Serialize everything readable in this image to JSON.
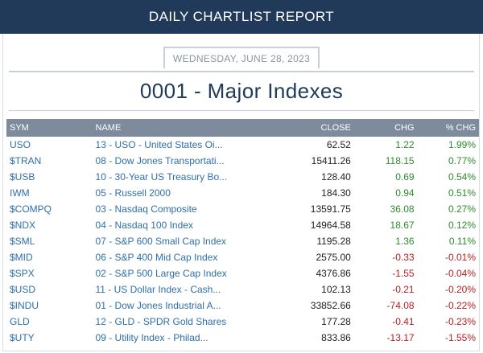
{
  "header": {
    "title": "DAILY CHARTLIST REPORT"
  },
  "date": "WEDNESDAY, JUNE 28, 2023",
  "report_title": "0001 - Major Indexes",
  "columns": {
    "sym": "SYM",
    "name": "NAME",
    "close": "CLOSE",
    "chg": "CHG",
    "pct": "% CHG"
  },
  "colors": {
    "header_bg": "#213a59",
    "table_head_bg": "#7d8b9d",
    "link": "#2f6fa7",
    "positive": "#2f8a2f",
    "negative": "#b22222"
  },
  "rows": [
    {
      "sym": "USO",
      "name": "13 - USO - United States Oi...",
      "close": "62.52",
      "chg": "1.22",
      "pct": "1.99%",
      "dir": "pos"
    },
    {
      "sym": "$TRAN",
      "name": "08 - Dow Jones Transportati...",
      "close": "15411.26",
      "chg": "118.15",
      "pct": "0.77%",
      "dir": "pos"
    },
    {
      "sym": "$USB",
      "name": "10 - 30-Year US Treasury Bo...",
      "close": "128.40",
      "chg": "0.69",
      "pct": "0.54%",
      "dir": "pos"
    },
    {
      "sym": "IWM",
      "name": "05 - Russell 2000",
      "close": "184.30",
      "chg": "0.94",
      "pct": "0.51%",
      "dir": "pos"
    },
    {
      "sym": "$COMPQ",
      "name": "03 - Nasdaq Composite",
      "close": "13591.75",
      "chg": "36.08",
      "pct": "0.27%",
      "dir": "pos"
    },
    {
      "sym": "$NDX",
      "name": "04 - Nasdaq 100 Index",
      "close": "14964.58",
      "chg": "18.67",
      "pct": "0.12%",
      "dir": "pos"
    },
    {
      "sym": "$SML",
      "name": "07 - S&P 600 Small Cap Index",
      "close": "1195.28",
      "chg": "1.36",
      "pct": "0.11%",
      "dir": "pos"
    },
    {
      "sym": "$MID",
      "name": "06 - S&P 400 Mid Cap Index",
      "close": "2575.00",
      "chg": "-0.33",
      "pct": "-0.01%",
      "dir": "neg"
    },
    {
      "sym": "$SPX",
      "name": "02 - S&P 500 Large Cap Index",
      "close": "4376.86",
      "chg": "-1.55",
      "pct": "-0.04%",
      "dir": "neg"
    },
    {
      "sym": "$USD",
      "name": "11 - US Dollar Index - Cash...",
      "close": "102.13",
      "chg": "-0.21",
      "pct": "-0.20%",
      "dir": "neg"
    },
    {
      "sym": "$INDU",
      "name": "01 - Dow Jones Industrial A...",
      "close": "33852.66",
      "chg": "-74.08",
      "pct": "-0.22%",
      "dir": "neg"
    },
    {
      "sym": "GLD",
      "name": "12 - GLD - SPDR Gold Shares",
      "close": "177.28",
      "chg": "-0.41",
      "pct": "-0.23%",
      "dir": "neg"
    },
    {
      "sym": "$UTY",
      "name": "09 - Utility Index - Philad...",
      "close": "833.86",
      "chg": "-13.17",
      "pct": "-1.55%",
      "dir": "neg"
    }
  ]
}
